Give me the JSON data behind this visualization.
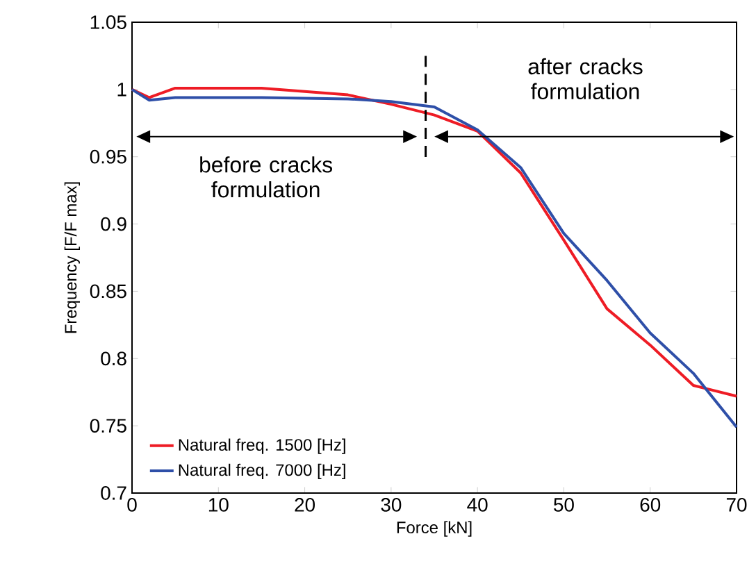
{
  "chart_data": {
    "type": "line",
    "xlabel": "Force [kN]",
    "ylabel": "Frequency [F/F max]",
    "x": [
      0,
      2,
      5,
      15,
      25,
      30,
      35,
      40,
      45,
      50,
      55,
      60,
      65,
      70
    ],
    "series": [
      {
        "name": "Natural freq. 1500 [Hz]",
        "color": "#ee1c25",
        "values": [
          1.0,
          0.994,
          1.001,
          1.001,
          0.996,
          0.989,
          0.981,
          0.969,
          0.938,
          0.888,
          0.837,
          0.81,
          0.78,
          0.772
        ]
      },
      {
        "name": "Natural freq. 7000 [Hz]",
        "color": "#2e4fa8",
        "values": [
          1.0,
          0.992,
          0.994,
          0.994,
          0.993,
          0.991,
          0.987,
          0.97,
          0.942,
          0.893,
          0.858,
          0.819,
          0.789,
          0.749
        ]
      }
    ],
    "xlim": [
      0,
      70
    ],
    "xticks": [
      0,
      10,
      20,
      30,
      40,
      50,
      60,
      70
    ],
    "ylim": [
      0.7,
      1.05
    ],
    "yticks": [
      0.7,
      0.75,
      0.8,
      0.85,
      0.9,
      0.95,
      1,
      1.05
    ],
    "ref_lines": [
      {
        "axis": "x",
        "value": 34,
        "line_style": "dashed",
        "color": "#000000"
      }
    ],
    "annotations": [
      "before cracks formulation",
      "after cracks formulation"
    ],
    "legend": "bottom left",
    "grid": false,
    "marker": "none",
    "line_style": "solid"
  }
}
